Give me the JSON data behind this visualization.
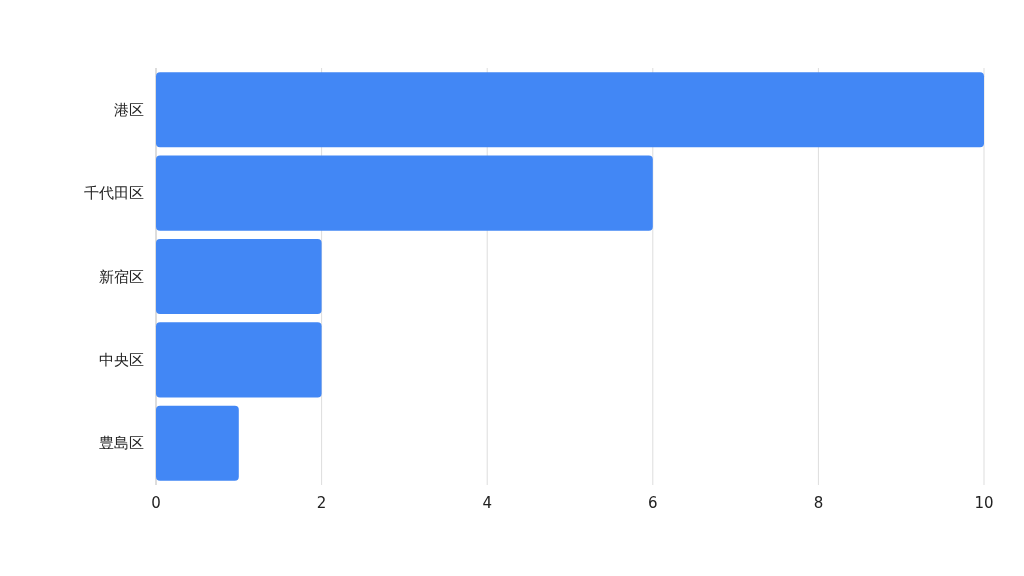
{
  "chart_data": {
    "type": "bar",
    "orientation": "horizontal",
    "categories": [
      "港区",
      "千代田区",
      "新宿区",
      "中央区",
      "豊島区"
    ],
    "values": [
      10,
      6,
      2,
      2,
      1
    ],
    "color": "#4287f5",
    "xlim": [
      0,
      10
    ],
    "xticks": [
      0,
      2,
      4,
      6,
      8,
      10
    ],
    "grid": "x"
  }
}
